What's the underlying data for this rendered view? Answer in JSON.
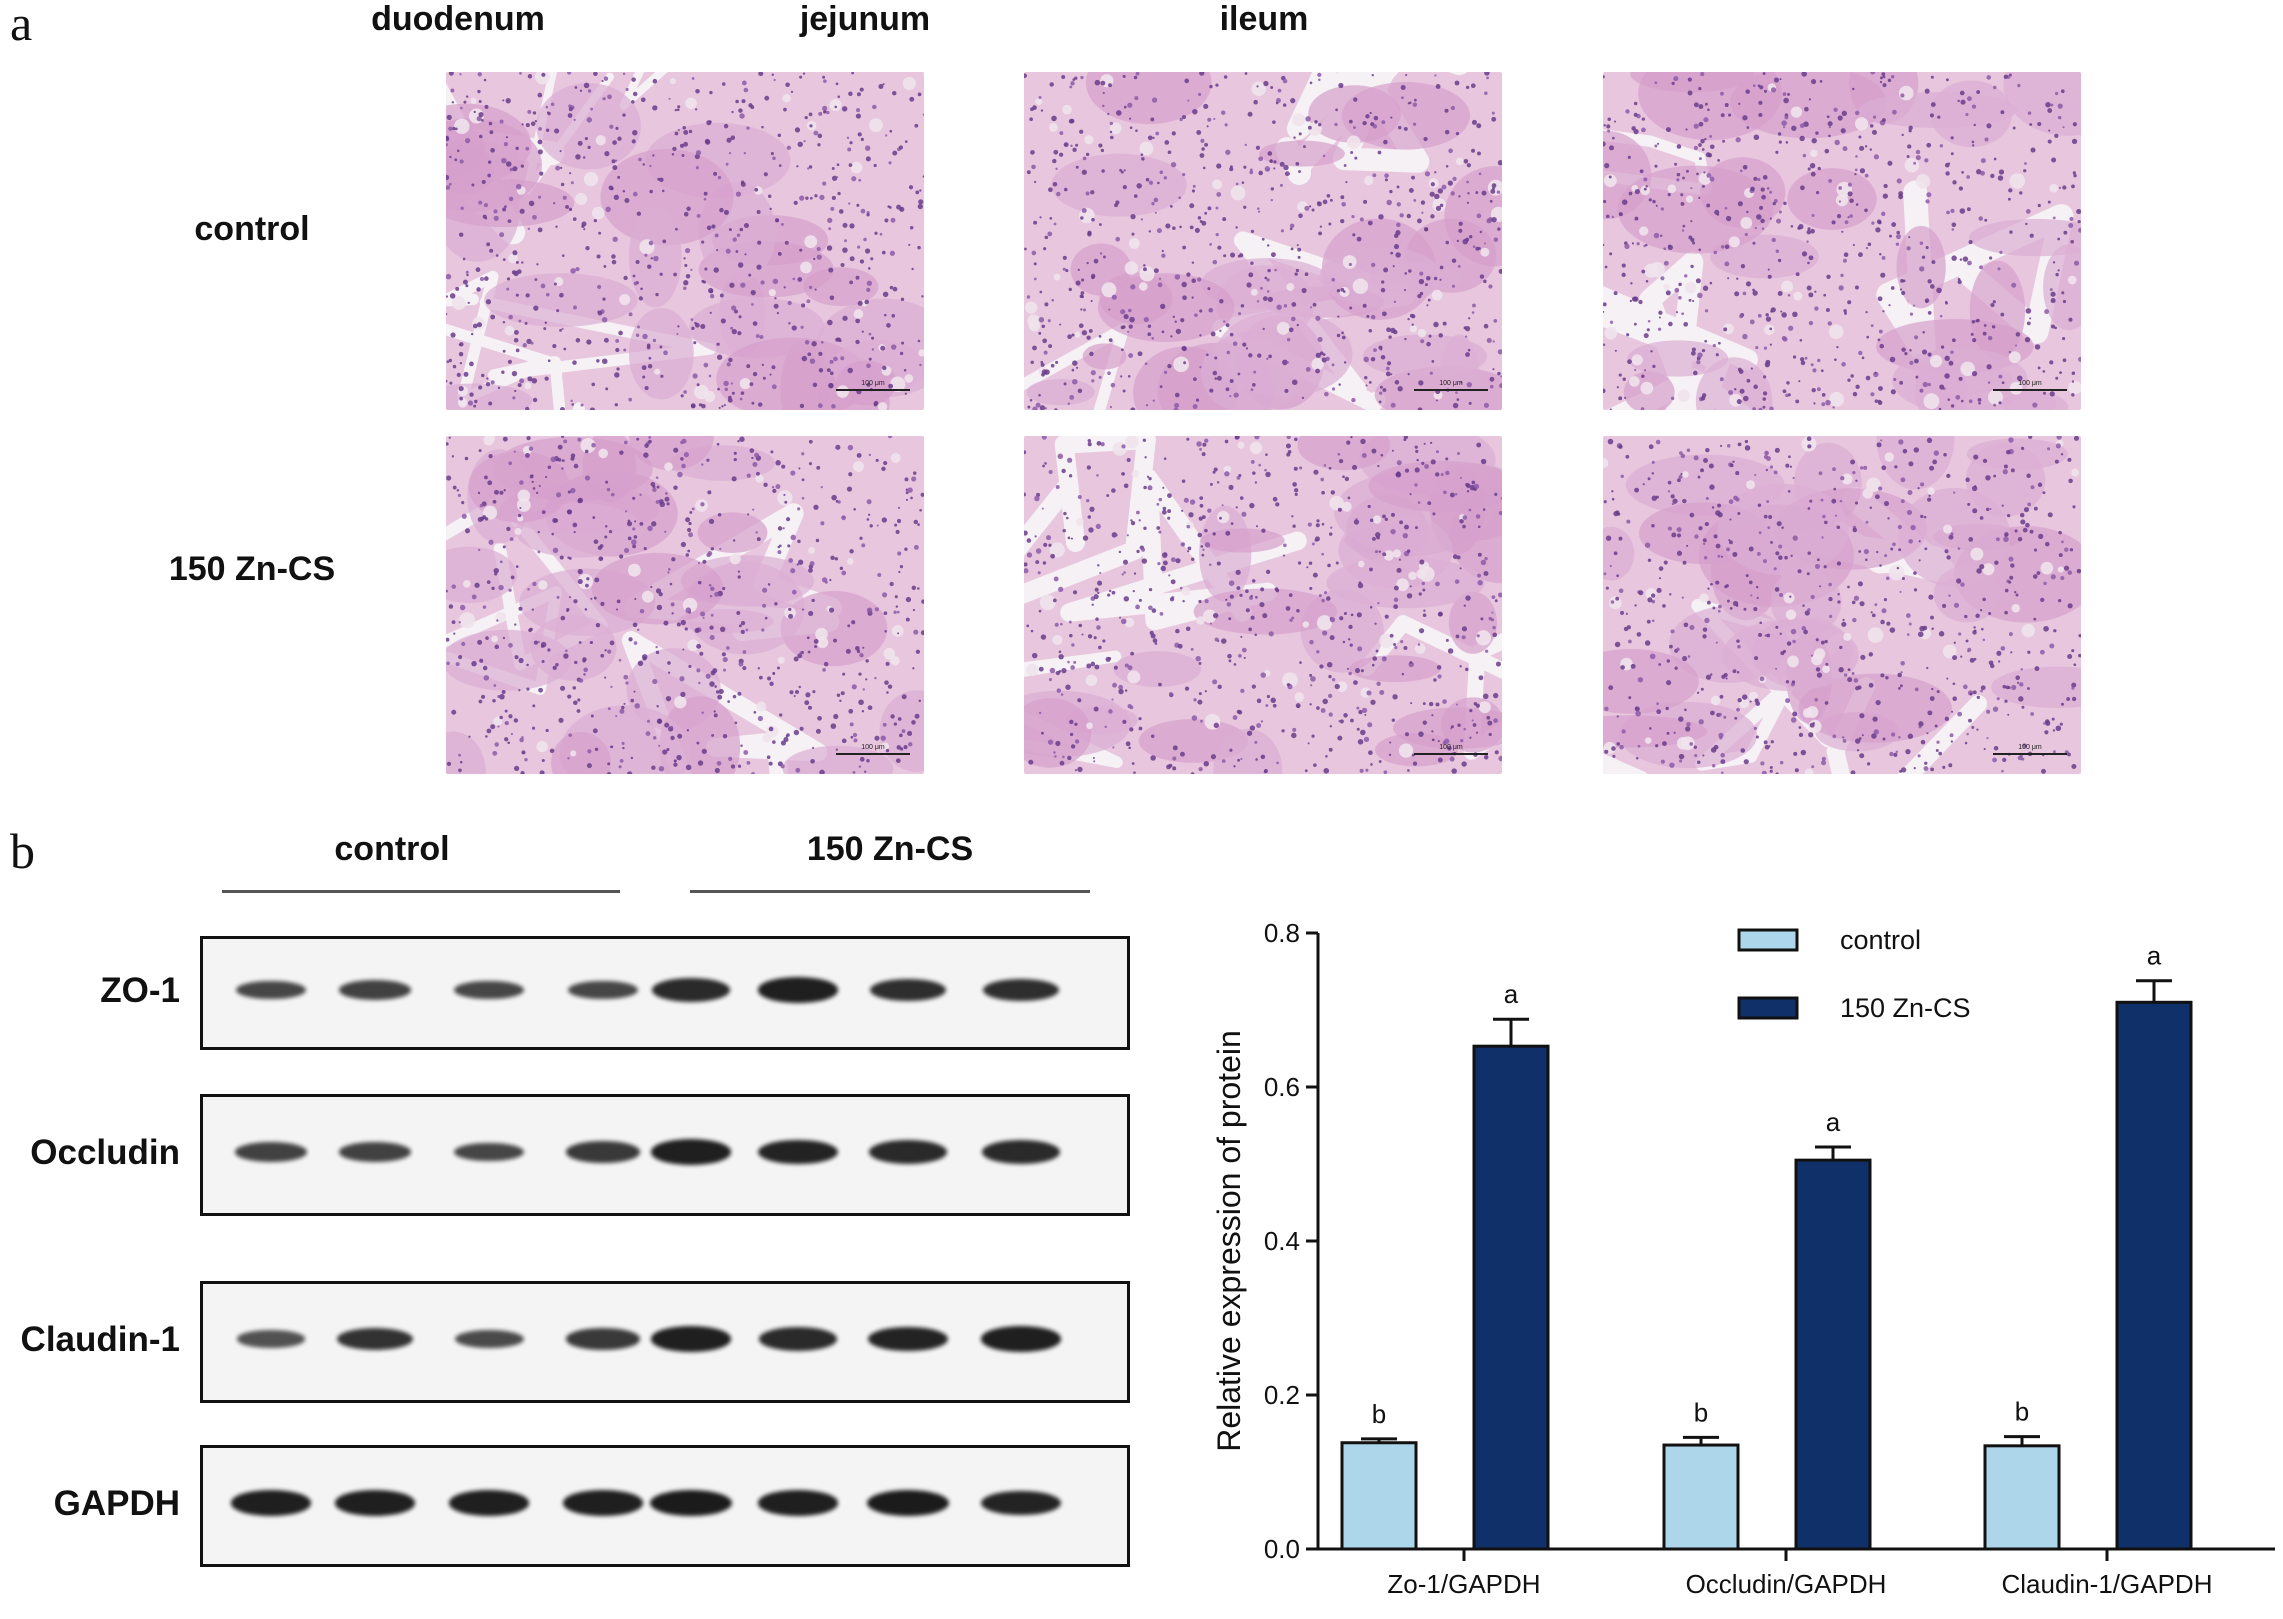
{
  "panel_a": {
    "letter": "a",
    "columns": [
      "duodenum",
      "jejunum",
      "ileum"
    ],
    "rows": [
      "control",
      "150 Zn-CS"
    ],
    "scale_bar": "100 μm"
  },
  "panel_b": {
    "letter": "b",
    "groups": [
      "control",
      "150 Zn-CS"
    ],
    "blots": [
      {
        "name": "ZO-1",
        "intensity": [
          0.55,
          0.6,
          0.55,
          0.55,
          0.85,
          0.95,
          0.8,
          0.8
        ]
      },
      {
        "name": "Occludin",
        "intensity": [
          0.6,
          0.6,
          0.55,
          0.7,
          0.95,
          0.9,
          0.85,
          0.85
        ]
      },
      {
        "name": "Claudin-1",
        "intensity": [
          0.45,
          0.75,
          0.5,
          0.7,
          0.95,
          0.85,
          0.9,
          0.95
        ]
      },
      {
        "name": "GAPDH",
        "intensity": [
          0.95,
          0.95,
          0.95,
          0.95,
          1.0,
          0.95,
          1.0,
          0.9
        ]
      }
    ]
  },
  "chart_data": {
    "type": "bar",
    "categories": [
      "Zo-1/GAPDH",
      "Occludin/GAPDH",
      "Claudin-1/GAPDH"
    ],
    "series": [
      {
        "name": "control",
        "values": [
          0.138,
          0.135,
          0.134
        ],
        "errors": [
          0.005,
          0.01,
          0.012
        ],
        "letters": [
          "b",
          "b",
          "b"
        ],
        "color": "#aed6ea"
      },
      {
        "name": "150 Zn-CS",
        "values": [
          0.653,
          0.505,
          0.71
        ],
        "errors": [
          0.035,
          0.017,
          0.028
        ],
        "letters": [
          "a",
          "a",
          "a"
        ],
        "color": "#0f3069"
      }
    ],
    "ylabel": "Relative expression of protein",
    "xlabel": "",
    "ylim": [
      0,
      0.8
    ],
    "yticks": [
      "0.0",
      "0.2",
      "0.4",
      "0.6",
      "0.8"
    ],
    "legend_position": "top-right"
  }
}
